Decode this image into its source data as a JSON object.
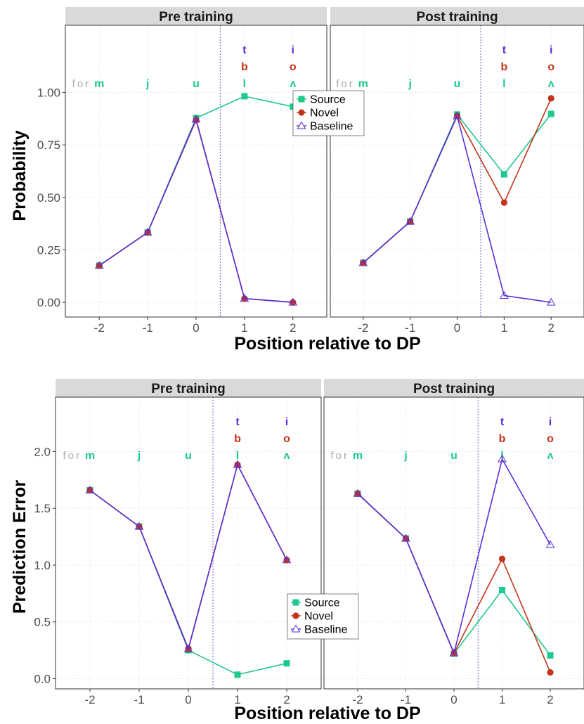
{
  "colors": {
    "source": "#1dc98b",
    "novel": "#c4341a",
    "baseline": "#5a2ed6",
    "strip_bg": "#d9d9d9",
    "grid": "#ebebeb",
    "dp_line": "#6a6acb",
    "prefix": "#aaaaaa"
  },
  "figure": {
    "x_axis_title": "Position relative to DP",
    "prefix_label": "for"
  },
  "chart_data": [
    {
      "type": "line",
      "name": "probability",
      "ylabel": "Probability",
      "xlabel": "Position relative to DP",
      "x": [
        -2,
        -1,
        0,
        1,
        2
      ],
      "xlim": [
        -2.7,
        2.7
      ],
      "ylim": [
        -0.07,
        1.32
      ],
      "y_ticks": [
        0.0,
        0.25,
        0.5,
        0.75,
        1.0
      ],
      "y_tick_labels": [
        "0.00",
        "0.25",
        "0.50",
        "0.75",
        "1.00"
      ],
      "x_ticks": [
        -2,
        -1,
        0,
        1,
        2
      ],
      "x_tick_labels": [
        "-2",
        "-1",
        "0",
        "1",
        "2"
      ],
      "dp_line_x": 0.5,
      "legend": {
        "placement": "top-right",
        "panel": 0,
        "entries": [
          "Source",
          "Novel",
          "Baseline"
        ]
      },
      "panels": [
        {
          "title": "Pre training",
          "series": [
            {
              "name": "Source",
              "values": [
                0.175,
                0.333,
                0.878,
                0.982,
                0.932
              ]
            },
            {
              "name": "Novel",
              "values": [
                0.175,
                0.333,
                0.868,
                0.018,
                0.0
              ]
            },
            {
              "name": "Baseline",
              "values": [
                0.175,
                0.333,
                0.872,
                0.018,
                0.0
              ]
            }
          ]
        },
        {
          "title": "Post training",
          "series": [
            {
              "name": "Source",
              "values": [
                0.188,
                0.385,
                0.895,
                0.61,
                0.898
              ]
            },
            {
              "name": "Novel",
              "values": [
                0.188,
                0.385,
                0.888,
                0.475,
                0.972
              ]
            },
            {
              "name": "Baseline",
              "values": [
                0.188,
                0.385,
                0.888,
                0.032,
                0.0
              ]
            }
          ]
        }
      ]
    },
    {
      "type": "line",
      "name": "prediction-error",
      "ylabel": "Prediction Error",
      "xlabel": "Position relative to DP",
      "x": [
        -2,
        -1,
        0,
        1,
        2
      ],
      "xlim": [
        -2.7,
        2.7
      ],
      "ylim": [
        -0.09,
        2.48
      ],
      "y_ticks": [
        0.0,
        0.5,
        1.0,
        1.5,
        2.0
      ],
      "y_tick_labels": [
        "0.0",
        "0.5",
        "1.0",
        "1.5",
        "2.0"
      ],
      "x_ticks": [
        -2,
        -1,
        0,
        1,
        2
      ],
      "x_tick_labels": [
        "-2",
        "-1",
        "0",
        "1",
        "2"
      ],
      "dp_line_x": 0.5,
      "legend": {
        "placement": "bottom-right",
        "panel": 0,
        "entries": [
          "Source",
          "Novel",
          "Baseline"
        ]
      },
      "panels": [
        {
          "title": "Pre training",
          "series": [
            {
              "name": "Source",
              "values": [
                1.66,
                1.34,
                0.25,
                0.035,
                0.135
              ]
            },
            {
              "name": "Novel",
              "values": [
                1.66,
                1.34,
                0.265,
                1.885,
                1.045
              ]
            },
            {
              "name": "Baseline",
              "values": [
                1.66,
                1.34,
                0.26,
                1.885,
                1.045
              ]
            }
          ]
        },
        {
          "title": "Post training",
          "series": [
            {
              "name": "Source",
              "values": [
                1.63,
                1.235,
                0.22,
                0.78,
                0.205
              ]
            },
            {
              "name": "Novel",
              "values": [
                1.63,
                1.235,
                0.225,
                1.055,
                0.055
              ]
            },
            {
              "name": "Baseline",
              "values": [
                1.63,
                1.235,
                0.225,
                1.935,
                1.18
              ]
            }
          ]
        }
      ]
    }
  ],
  "segments": {
    "row_source": [
      "m",
      "j",
      "u",
      "l",
      "ʌ"
    ],
    "row_novel": {
      "1": "b",
      "2": "o"
    },
    "row_baseline": {
      "1": "t",
      "2": "i"
    }
  }
}
